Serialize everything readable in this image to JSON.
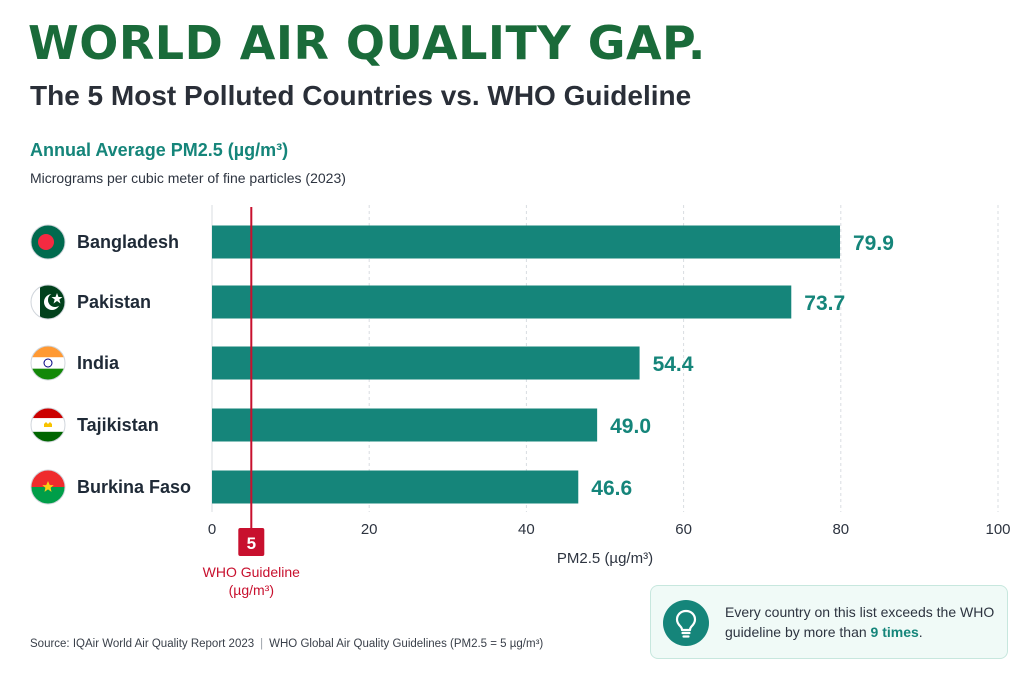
{
  "header": {
    "title": "WORLD AIR QUALITY GAP.",
    "subtitle": "The 5 Most Polluted Countries vs. WHO Guideline"
  },
  "metric": {
    "title": "Annual Average PM2.5 (µg/m³)",
    "subtitle": "Micrograms per cubic meter of fine particles (2023)"
  },
  "chart_data": {
    "type": "bar",
    "orientation": "horizontal",
    "categories": [
      "Bangladesh",
      "Pakistan",
      "India",
      "Tajikistan",
      "Burkina Faso"
    ],
    "values": [
      79.9,
      73.7,
      54.4,
      49.0,
      46.6
    ],
    "value_labels": [
      "79.9",
      "73.7",
      "54.4",
      "49.0",
      "46.6"
    ],
    "xlabel": "PM2.5 (µg/m³)",
    "xlim": [
      0,
      100
    ],
    "xticks": [
      0,
      20,
      40,
      60,
      80,
      100
    ],
    "grid": true,
    "bar_color": "#15857a",
    "reference_line": {
      "value": 5,
      "value_label": "5",
      "label_line1": "WHO Guideline",
      "label_line2": "(µg/m³)",
      "color": "#c8102e"
    }
  },
  "flags": [
    {
      "country": "Bangladesh",
      "icon": "bangladesh-flag-icon",
      "colors": [
        "#006a4e",
        "#f42a41"
      ]
    },
    {
      "country": "Pakistan",
      "icon": "pakistan-flag-icon",
      "colors": [
        "#01411c",
        "#ffffff"
      ]
    },
    {
      "country": "India",
      "icon": "india-flag-icon",
      "colors": [
        "#ff9933",
        "#ffffff",
        "#138808",
        "#000080"
      ]
    },
    {
      "country": "Tajikistan",
      "icon": "tajikistan-flag-icon",
      "colors": [
        "#cc0000",
        "#ffffff",
        "#006600",
        "#f8c300"
      ]
    },
    {
      "country": "Burkina Faso",
      "icon": "burkina-faso-flag-icon",
      "colors": [
        "#ef2b2d",
        "#009e49",
        "#fcd116"
      ]
    }
  ],
  "callout": {
    "icon": "lightbulb-icon",
    "text": "Every country on this list exceeds the WHO guideline by more than ",
    "highlight": "9 times",
    "suffix": "."
  },
  "source": {
    "part1": "Source: IQAir World Air Quality Report 2023",
    "separator": "|",
    "part2": "WHO Global Air Quality Guidelines (PM2.5 = 5 µg/m³)"
  }
}
